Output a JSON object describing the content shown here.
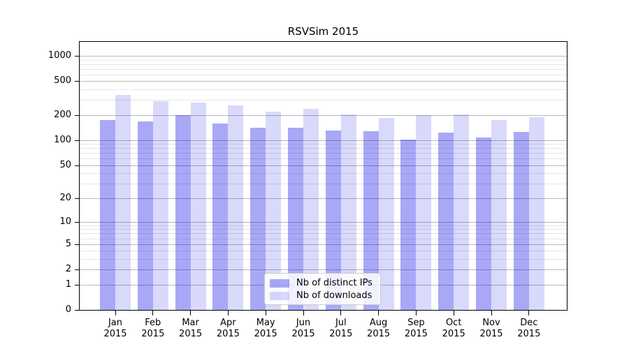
{
  "chart_data": {
    "type": "bar",
    "title": "RSVSim 2015",
    "x_categories": [
      "Jan",
      "Feb",
      "Mar",
      "Apr",
      "May",
      "Jun",
      "Jul",
      "Aug",
      "Sep",
      "Oct",
      "Nov",
      "Dec"
    ],
    "x_category_sublabel": "2015",
    "series": [
      {
        "name": "Nb of distinct IPs",
        "color": "rgba(0,0,230,0.34)",
        "values": [
          172,
          168,
          200,
          158,
          142,
          140,
          130,
          127,
          102,
          124,
          107,
          125
        ]
      },
      {
        "name": "Nb of downloads",
        "color": "rgba(0,0,230,0.15)",
        "values": [
          345,
          290,
          280,
          260,
          218,
          237,
          202,
          183,
          197,
          203,
          174,
          186
        ]
      }
    ],
    "yscale": "log1p",
    "ylim": [
      0,
      1460
    ],
    "ytick_labels": [
      "0",
      "1",
      "2",
      "5",
      "10",
      "20",
      "50",
      "100",
      "200",
      "500",
      "1000"
    ],
    "ytick_values": [
      0,
      1,
      2,
      5,
      10,
      20,
      50,
      100,
      200,
      500,
      1000
    ],
    "minor_gridline_values": [
      3,
      4,
      6,
      7,
      8,
      9,
      30,
      40,
      60,
      70,
      80,
      90,
      300,
      400,
      600,
      700,
      800,
      900
    ],
    "grid": "on",
    "legend_position": "inside-bottom-center",
    "colors": {
      "bar_distinct_ips": "rgba(0,0,230,0.34)",
      "bar_downloads": "rgba(0,0,230,0.15)",
      "major_grid": "#b8b8b8",
      "minor_grid": "#e6e6e6",
      "axis": "#000000"
    }
  }
}
